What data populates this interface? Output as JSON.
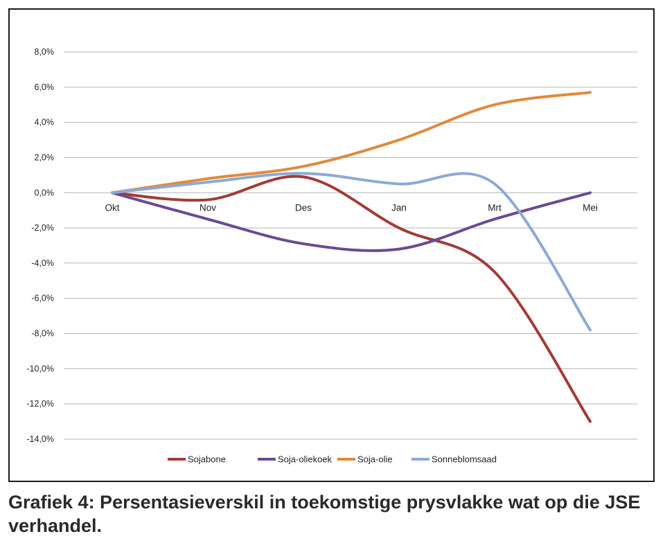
{
  "caption": "Grafiek 4: Persentasieverskil in toekomstige prysvlakke wat op die JSE verhandel.",
  "chart_data": {
    "type": "line",
    "title": "",
    "xlabel": "",
    "ylabel": "",
    "categories": [
      "Okt",
      "Nov",
      "Des",
      "Jan",
      "Mrt",
      "Mei"
    ],
    "ylim": [
      -14,
      8
    ],
    "yticks": [
      8,
      6,
      4,
      2,
      0,
      -2,
      -4,
      -6,
      -8,
      -10,
      -12,
      -14
    ],
    "ytick_labels": [
      "8,0%",
      "6,0%",
      "4,0%",
      "2,0%",
      "0,0%",
      "-2,0%",
      "-4,0%",
      "-6,0%",
      "-8,0%",
      "-10,0%",
      "-12,0%",
      "-14,0%"
    ],
    "grid": true,
    "legend_position": "bottom",
    "series": [
      {
        "name": "Sojabone",
        "color": "#a23b35",
        "values": [
          0.0,
          -0.4,
          0.9,
          -2.0,
          -4.5,
          -13.0
        ]
      },
      {
        "name": "Soja-oliekoek",
        "color": "#6a4a93",
        "values": [
          0.0,
          -1.5,
          -2.9,
          -3.2,
          -1.5,
          0.0
        ]
      },
      {
        "name": "Soja-olie",
        "color": "#e08a3c",
        "values": [
          0.0,
          0.8,
          1.5,
          3.0,
          5.0,
          5.7
        ]
      },
      {
        "name": "Sonneblomsaad",
        "color": "#8ca9d6",
        "values": [
          0.0,
          0.6,
          1.1,
          0.5,
          0.5,
          -7.8
        ]
      }
    ]
  }
}
